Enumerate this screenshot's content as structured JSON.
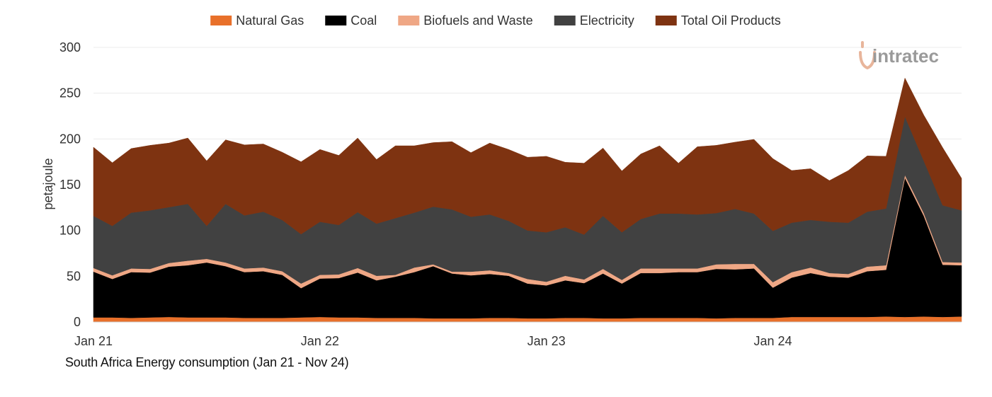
{
  "caption": "South Africa Energy consumption (Jan 21 - Nov 24)",
  "watermark": "intratec",
  "chart_data": {
    "type": "area",
    "stacked": true,
    "title": "South Africa Energy consumption (Jan 21 - Nov 24)",
    "xlabel": "",
    "ylabel": "petajoule",
    "ylim": [
      0,
      300
    ],
    "yticks": [
      0,
      50,
      100,
      150,
      200,
      250,
      300
    ],
    "xtick_labels": [
      {
        "label": "Jan 21",
        "index": 0
      },
      {
        "label": "Jan 22",
        "index": 12
      },
      {
        "label": "Jan 23",
        "index": 24
      },
      {
        "label": "Jan 24",
        "index": 36
      }
    ],
    "grid": true,
    "legend_position": "top-center",
    "x": [
      "Jan 21",
      "Feb 21",
      "Mar 21",
      "Apr 21",
      "May 21",
      "Jun 21",
      "Jul 21",
      "Aug 21",
      "Sep 21",
      "Oct 21",
      "Nov 21",
      "Dec 21",
      "Jan 22",
      "Feb 22",
      "Mar 22",
      "Apr 22",
      "May 22",
      "Jun 22",
      "Jul 22",
      "Aug 22",
      "Sep 22",
      "Oct 22",
      "Nov 22",
      "Dec 22",
      "Jan 23",
      "Feb 23",
      "Mar 23",
      "Apr 23",
      "May 23",
      "Jun 23",
      "Jul 23",
      "Aug 23",
      "Sep 23",
      "Oct 23",
      "Nov 23",
      "Dec 23",
      "Jan 24",
      "Feb 24",
      "Mar 24",
      "Apr 24",
      "May 24",
      "Jun 24",
      "Jul 24",
      "Aug 24",
      "Sep 24",
      "Oct 24",
      "Nov 24"
    ],
    "series": [
      {
        "name": "Natural Gas",
        "color": "#E8702A",
        "values": [
          5,
          5,
          4.5,
          5,
          5.5,
          5,
          5,
          5,
          4.5,
          4.5,
          4.5,
          5,
          5.5,
          5,
          5,
          4.5,
          4.5,
          4.5,
          4,
          4,
          4,
          4.5,
          4.5,
          4,
          4,
          4.5,
          4.5,
          4,
          4,
          4.5,
          4.5,
          4.5,
          4.5,
          4,
          4.5,
          4.5,
          4.5,
          5.5,
          5.5,
          5.5,
          5.5,
          5.5,
          6,
          5.5,
          6,
          5.5,
          6
        ]
      },
      {
        "name": "Coal",
        "color": "#000000",
        "values": [
          50,
          42,
          50,
          49,
          55,
          57,
          60,
          56,
          50,
          51,
          47,
          32,
          42,
          43,
          49,
          41,
          45,
          50,
          57,
          49,
          47,
          48,
          46,
          38,
          36,
          41,
          38,
          49,
          38,
          49,
          49,
          50,
          50,
          54,
          53,
          54,
          33,
          43,
          48,
          44,
          43,
          50,
          51,
          152,
          110,
          57,
          56
        ]
      },
      {
        "name": "Biofuels and Waste",
        "color": "#EFA785",
        "values": [
          4,
          4,
          4,
          4,
          4,
          5,
          4,
          4,
          4,
          4,
          4,
          5,
          4,
          4,
          5,
          5,
          2,
          5,
          2,
          2,
          4,
          4,
          3,
          5,
          4,
          5,
          4,
          5,
          4,
          5,
          5,
          4,
          4,
          5,
          6,
          5,
          6,
          6,
          6,
          4,
          4,
          5,
          5,
          3,
          3,
          3,
          3
        ]
      },
      {
        "name": "Electricity",
        "color": "#414141",
        "values": [
          57,
          54,
          61,
          64,
          61,
          62,
          36,
          64,
          58,
          61,
          56,
          54,
          58,
          54,
          61,
          57,
          62,
          60,
          63,
          68,
          60,
          61,
          57,
          53,
          54,
          53,
          49,
          58,
          52,
          54,
          60,
          60,
          59,
          56,
          60,
          55,
          56,
          54,
          52,
          56,
          56,
          60,
          62,
          64,
          57,
          62,
          57
        ]
      },
      {
        "name": "Total Oil Products",
        "color": "#7E3311",
        "values": [
          75,
          69,
          70,
          71,
          70,
          72,
          71,
          70,
          77,
          74,
          74,
          79,
          79,
          76,
          81,
          70,
          79,
          73,
          70,
          74,
          70,
          78,
          78,
          80,
          83,
          71,
          78,
          74,
          67,
          71,
          74,
          55,
          74,
          74,
          73,
          81,
          79,
          57,
          56,
          45,
          57,
          61,
          57,
          42,
          50,
          63,
          35
        ]
      }
    ]
  }
}
